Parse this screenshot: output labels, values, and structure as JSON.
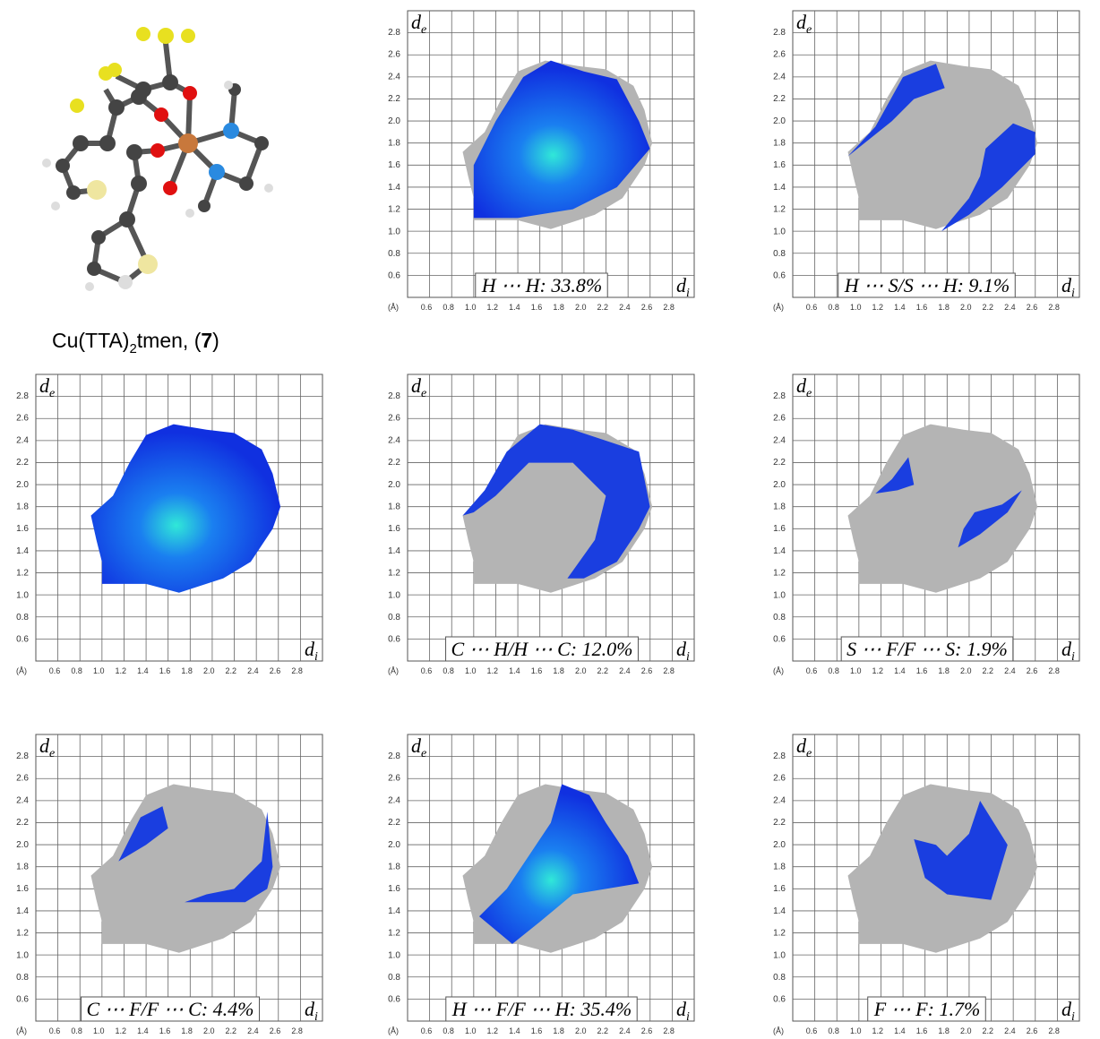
{
  "figure": {
    "caption": {
      "name": "Cu(TTA)",
      "sub": "2",
      "rest": "tmen, (",
      "number": "7",
      "close": ")"
    },
    "axis": {
      "de": "d",
      "de_sub": "e",
      "di": "d",
      "di_sub": "i",
      "unit": "(Å)",
      "yticks": [
        "2.8",
        "2.6",
        "2.4",
        "2.2",
        "2.0",
        "1.8",
        "1.6",
        "1.4",
        "1.2",
        "1.0",
        "0.8",
        "0.6"
      ],
      "xticks": [
        "0.6",
        "0.8",
        "1.0",
        "1.2",
        "1.4",
        "1.6",
        "1.8",
        "2.0",
        "2.2",
        "2.4",
        "2.6",
        "2.8"
      ]
    },
    "panels": [
      {
        "label": "H ⋯ H: 33.8%"
      },
      {
        "label": "H ⋯ S/S ⋯ H: 9.1%"
      },
      {},
      {
        "label": "C ⋯ H/H ⋯ C: 12.0%"
      },
      {
        "label": "S ⋯ F/F ⋯ S: 1.9%"
      },
      {
        "label": "C ⋯ F/F ⋯ C: 4.4%"
      },
      {
        "label": "H ⋯ F/F ⋯ H: 35.4%"
      },
      {
        "label": "F ⋯ F: 1.7%"
      }
    ]
  }
}
